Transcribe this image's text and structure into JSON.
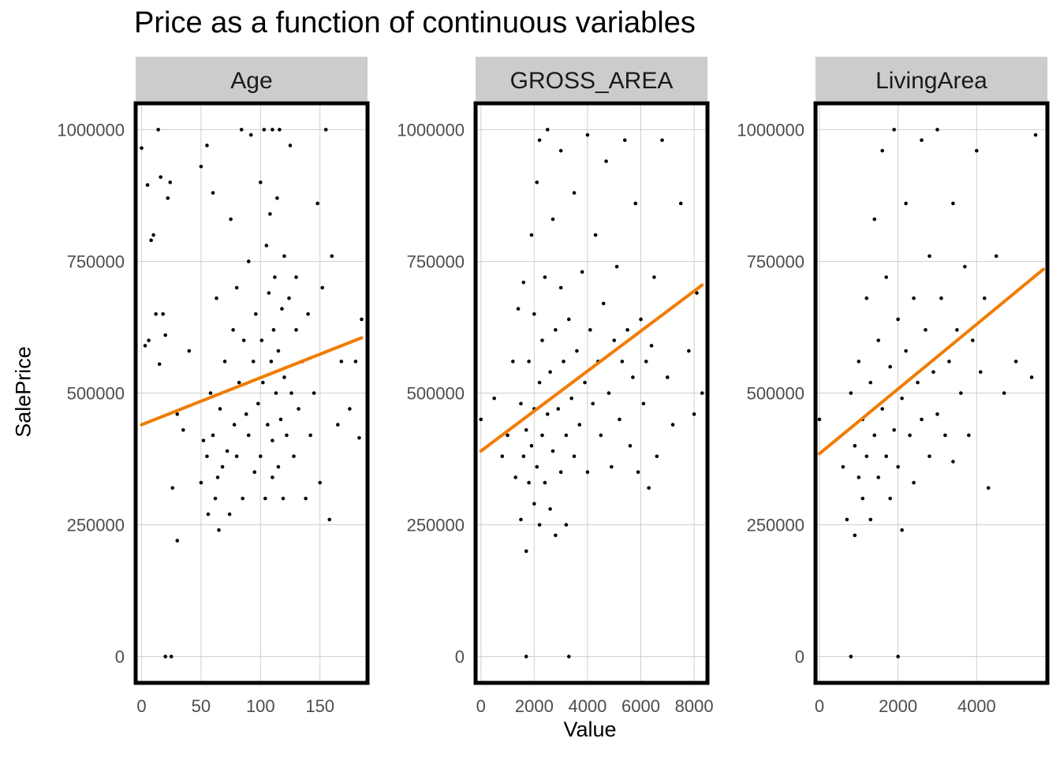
{
  "chart_title": "Price as a function of continuous variables",
  "ylabel": "SalePrice",
  "xlabel": "Value",
  "colors": {
    "points": "#000000",
    "trend": "#f07c00",
    "strip": "#cccccc",
    "grid": "#d0d0d0",
    "tick_text": "#4d4d4d"
  },
  "chart_data": {
    "type": "scatter",
    "title": "Price as a function of continuous variables",
    "xlabel": "Value",
    "ylabel": "SalePrice",
    "ylim": [
      -50000,
      1050000
    ],
    "y_ticks": [
      0,
      250000,
      500000,
      750000,
      1000000
    ],
    "grid": true,
    "facets": [
      {
        "name": "Age",
        "xlim": [
          -5,
          190
        ],
        "x_ticks": [
          0,
          50,
          100,
          150
        ],
        "trend": {
          "x": [
            0,
            185
          ],
          "y": [
            440000,
            605000
          ]
        },
        "points": [
          [
            0,
            965000
          ],
          [
            3,
            590000
          ],
          [
            5,
            895000
          ],
          [
            6,
            600000
          ],
          [
            8,
            790000
          ],
          [
            10,
            800000
          ],
          [
            12,
            650000
          ],
          [
            14,
            1000000
          ],
          [
            15,
            555000
          ],
          [
            16,
            910000
          ],
          [
            18,
            650000
          ],
          [
            20,
            0
          ],
          [
            20,
            610000
          ],
          [
            22,
            870000
          ],
          [
            24,
            900000
          ],
          [
            25,
            0
          ],
          [
            26,
            320000
          ],
          [
            30,
            220000
          ],
          [
            30,
            460000
          ],
          [
            35,
            430000
          ],
          [
            40,
            580000
          ],
          [
            50,
            930000
          ],
          [
            50,
            330000
          ],
          [
            52,
            410000
          ],
          [
            55,
            970000
          ],
          [
            55,
            380000
          ],
          [
            56,
            270000
          ],
          [
            58,
            500000
          ],
          [
            60,
            880000
          ],
          [
            60,
            420000
          ],
          [
            62,
            300000
          ],
          [
            63,
            680000
          ],
          [
            64,
            340000
          ],
          [
            65,
            240000
          ],
          [
            66,
            470000
          ],
          [
            68,
            360000
          ],
          [
            70,
            560000
          ],
          [
            72,
            390000
          ],
          [
            74,
            270000
          ],
          [
            75,
            830000
          ],
          [
            77,
            620000
          ],
          [
            78,
            440000
          ],
          [
            80,
            380000
          ],
          [
            80,
            700000
          ],
          [
            82,
            520000
          ],
          [
            84,
            1000000
          ],
          [
            85,
            300000
          ],
          [
            86,
            600000
          ],
          [
            88,
            460000
          ],
          [
            90,
            750000
          ],
          [
            90,
            420000
          ],
          [
            92,
            990000
          ],
          [
            94,
            560000
          ],
          [
            95,
            350000
          ],
          [
            96,
            650000
          ],
          [
            98,
            480000
          ],
          [
            100,
            900000
          ],
          [
            100,
            380000
          ],
          [
            101,
            600000
          ],
          [
            102,
            520000
          ],
          [
            103,
            1000000
          ],
          [
            104,
            300000
          ],
          [
            105,
            780000
          ],
          [
            106,
            440000
          ],
          [
            107,
            690000
          ],
          [
            108,
            840000
          ],
          [
            109,
            560000
          ],
          [
            110,
            1000000
          ],
          [
            110,
            340000
          ],
          [
            110,
            410000
          ],
          [
            111,
            620000
          ],
          [
            112,
            720000
          ],
          [
            113,
            500000
          ],
          [
            114,
            870000
          ],
          [
            115,
            360000
          ],
          [
            115,
            580000
          ],
          [
            116,
            1000000
          ],
          [
            117,
            450000
          ],
          [
            118,
            660000
          ],
          [
            119,
            300000
          ],
          [
            120,
            530000
          ],
          [
            120,
            760000
          ],
          [
            122,
            420000
          ],
          [
            124,
            680000
          ],
          [
            125,
            970000
          ],
          [
            126,
            500000
          ],
          [
            128,
            380000
          ],
          [
            130,
            620000
          ],
          [
            130,
            720000
          ],
          [
            132,
            470000
          ],
          [
            135,
            560000
          ],
          [
            138,
            300000
          ],
          [
            140,
            650000
          ],
          [
            142,
            420000
          ],
          [
            145,
            500000
          ],
          [
            148,
            860000
          ],
          [
            150,
            330000
          ],
          [
            152,
            700000
          ],
          [
            155,
            1000000
          ],
          [
            158,
            260000
          ],
          [
            160,
            760000
          ],
          [
            165,
            440000
          ],
          [
            168,
            560000
          ],
          [
            175,
            470000
          ],
          [
            180,
            560000
          ],
          [
            183,
            415000
          ],
          [
            185,
            640000
          ]
        ]
      },
      {
        "name": "GROSS_AREA",
        "xlim": [
          -200,
          8500
        ],
        "x_ticks": [
          0,
          2000,
          4000,
          6000,
          8000
        ],
        "trend": {
          "x": [
            0,
            8300
          ],
          "y": [
            390000,
            705000
          ]
        },
        "points": [
          [
            0,
            450000
          ],
          [
            500,
            490000
          ],
          [
            800,
            380000
          ],
          [
            1000,
            420000
          ],
          [
            1200,
            560000
          ],
          [
            1300,
            340000
          ],
          [
            1400,
            660000
          ],
          [
            1500,
            260000
          ],
          [
            1500,
            480000
          ],
          [
            1600,
            380000
          ],
          [
            1600,
            710000
          ],
          [
            1700,
            200000
          ],
          [
            1700,
            430000
          ],
          [
            1700,
            0
          ],
          [
            1800,
            330000
          ],
          [
            1800,
            560000
          ],
          [
            1900,
            400000
          ],
          [
            1900,
            800000
          ],
          [
            2000,
            290000
          ],
          [
            2000,
            470000
          ],
          [
            2000,
            650000
          ],
          [
            2100,
            360000
          ],
          [
            2100,
            900000
          ],
          [
            2200,
            250000
          ],
          [
            2200,
            520000
          ],
          [
            2200,
            980000
          ],
          [
            2300,
            420000
          ],
          [
            2300,
            600000
          ],
          [
            2400,
            330000
          ],
          [
            2400,
            720000
          ],
          [
            2500,
            460000
          ],
          [
            2500,
            1000000
          ],
          [
            2600,
            280000
          ],
          [
            2600,
            540000
          ],
          [
            2700,
            390000
          ],
          [
            2700,
            830000
          ],
          [
            2800,
            620000
          ],
          [
            2800,
            230000
          ],
          [
            2900,
            470000
          ],
          [
            3000,
            350000
          ],
          [
            3000,
            700000
          ],
          [
            3000,
            960000
          ],
          [
            3100,
            560000
          ],
          [
            3200,
            420000
          ],
          [
            3200,
            250000
          ],
          [
            3300,
            640000
          ],
          [
            3300,
            0
          ],
          [
            3400,
            490000
          ],
          [
            3500,
            380000
          ],
          [
            3500,
            880000
          ],
          [
            3600,
            580000
          ],
          [
            3700,
            440000
          ],
          [
            3800,
            730000
          ],
          [
            3900,
            520000
          ],
          [
            4000,
            350000
          ],
          [
            4000,
            990000
          ],
          [
            4100,
            620000
          ],
          [
            4200,
            480000
          ],
          [
            4300,
            800000
          ],
          [
            4400,
            560000
          ],
          [
            4500,
            420000
          ],
          [
            4600,
            670000
          ],
          [
            4700,
            940000
          ],
          [
            4800,
            500000
          ],
          [
            4900,
            360000
          ],
          [
            5000,
            600000
          ],
          [
            5100,
            740000
          ],
          [
            5200,
            450000
          ],
          [
            5300,
            560000
          ],
          [
            5400,
            980000
          ],
          [
            5500,
            620000
          ],
          [
            5600,
            400000
          ],
          [
            5700,
            530000
          ],
          [
            5800,
            860000
          ],
          [
            5900,
            350000
          ],
          [
            6000,
            640000
          ],
          [
            6100,
            480000
          ],
          [
            6200,
            560000
          ],
          [
            6300,
            320000
          ],
          [
            6400,
            590000
          ],
          [
            6500,
            720000
          ],
          [
            6600,
            380000
          ],
          [
            6800,
            980000
          ],
          [
            7000,
            530000
          ],
          [
            7200,
            440000
          ],
          [
            7500,
            860000
          ],
          [
            7800,
            580000
          ],
          [
            8000,
            460000
          ],
          [
            8100,
            690000
          ],
          [
            8300,
            500000
          ]
        ]
      },
      {
        "name": "LivingArea",
        "xlim": [
          -100,
          5800
        ],
        "x_ticks": [
          0,
          2000,
          4000
        ],
        "trend": {
          "x": [
            0,
            5700
          ],
          "y": [
            385000,
            735000
          ]
        },
        "points": [
          [
            0,
            450000
          ],
          [
            600,
            360000
          ],
          [
            700,
            260000
          ],
          [
            800,
            500000
          ],
          [
            800,
            0
          ],
          [
            900,
            400000
          ],
          [
            900,
            230000
          ],
          [
            1000,
            340000
          ],
          [
            1000,
            560000
          ],
          [
            1100,
            450000
          ],
          [
            1100,
            300000
          ],
          [
            1200,
            380000
          ],
          [
            1200,
            680000
          ],
          [
            1300,
            260000
          ],
          [
            1300,
            520000
          ],
          [
            1400,
            420000
          ],
          [
            1400,
            830000
          ],
          [
            1500,
            340000
          ],
          [
            1500,
            600000
          ],
          [
            1600,
            470000
          ],
          [
            1600,
            960000
          ],
          [
            1700,
            380000
          ],
          [
            1700,
            720000
          ],
          [
            1800,
            300000
          ],
          [
            1800,
            550000
          ],
          [
            1900,
            430000
          ],
          [
            1900,
            1000000
          ],
          [
            2000,
            360000
          ],
          [
            2000,
            640000
          ],
          [
            2000,
            0
          ],
          [
            2100,
            490000
          ],
          [
            2100,
            240000
          ],
          [
            2200,
            580000
          ],
          [
            2200,
            860000
          ],
          [
            2300,
            420000
          ],
          [
            2400,
            680000
          ],
          [
            2400,
            330000
          ],
          [
            2500,
            520000
          ],
          [
            2600,
            980000
          ],
          [
            2600,
            450000
          ],
          [
            2700,
            620000
          ],
          [
            2800,
            380000
          ],
          [
            2800,
            760000
          ],
          [
            2900,
            540000
          ],
          [
            3000,
            460000
          ],
          [
            3000,
            1000000
          ],
          [
            3100,
            680000
          ],
          [
            3200,
            420000
          ],
          [
            3300,
            560000
          ],
          [
            3400,
            860000
          ],
          [
            3400,
            370000
          ],
          [
            3500,
            620000
          ],
          [
            3600,
            500000
          ],
          [
            3700,
            740000
          ],
          [
            3800,
            420000
          ],
          [
            3900,
            600000
          ],
          [
            4000,
            960000
          ],
          [
            4100,
            540000
          ],
          [
            4200,
            680000
          ],
          [
            4300,
            320000
          ],
          [
            4500,
            760000
          ],
          [
            4700,
            500000
          ],
          [
            5000,
            560000
          ],
          [
            5400,
            530000
          ],
          [
            5500,
            990000
          ]
        ]
      }
    ]
  }
}
